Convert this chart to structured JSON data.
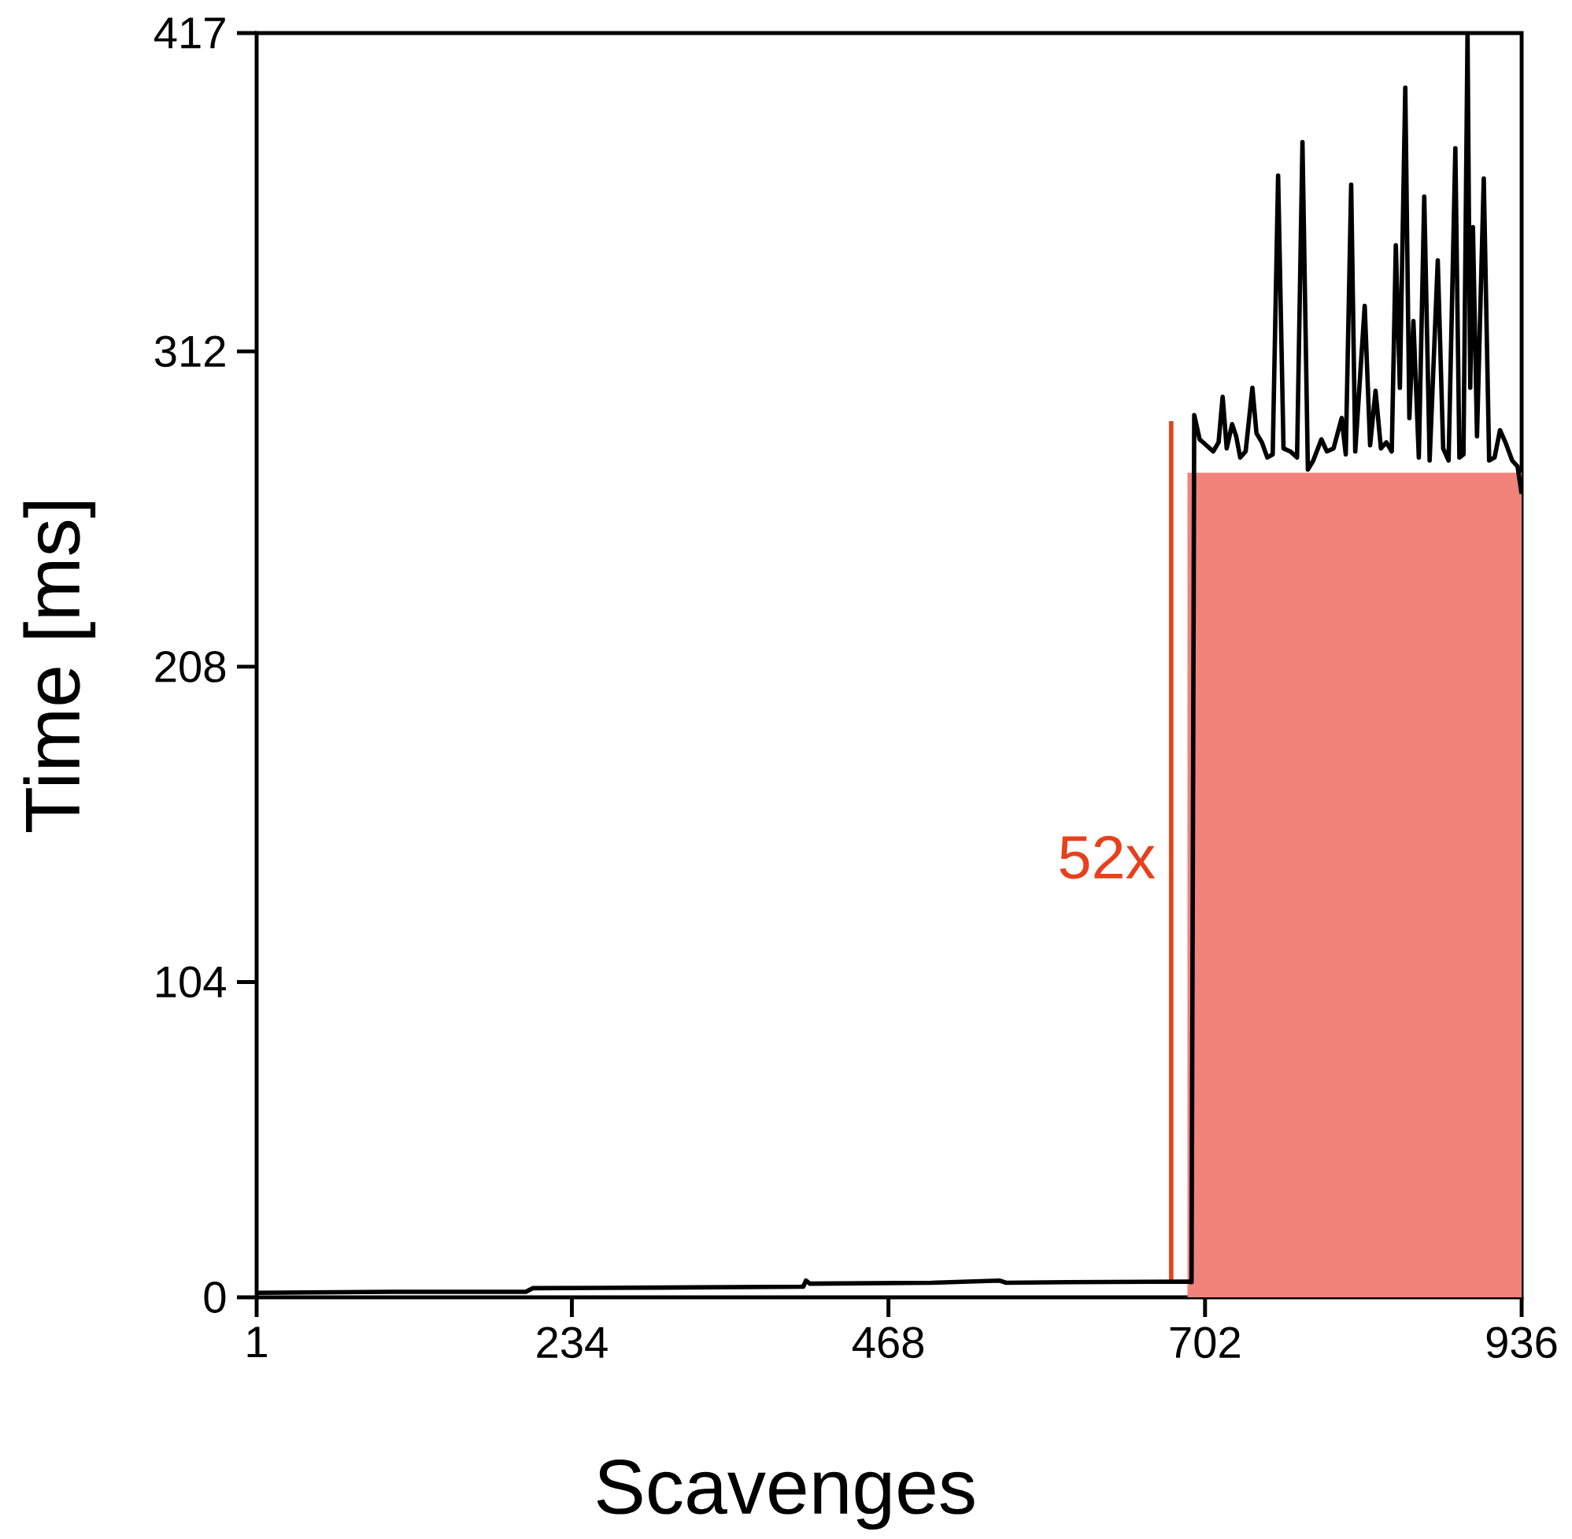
{
  "chart_data": {
    "type": "line",
    "xlabel": "Scavenges",
    "ylabel": "Time [ms]",
    "xlim": [
      1,
      936
    ],
    "ylim": [
      0,
      417
    ],
    "xticks": [
      1,
      234,
      468,
      702,
      936
    ],
    "yticks": [
      0,
      104,
      208,
      312,
      417
    ],
    "annotations": [
      "52x"
    ],
    "series": [
      {
        "type": "area",
        "color": "#f2837a",
        "x": [
          689,
          936
        ],
        "values": [
          272,
          272
        ]
      },
      {
        "type": "line",
        "color": "#e8401c",
        "x": [
          677,
          677
        ],
        "values": [
          5,
          289
        ]
      },
      {
        "color": "#000000",
        "x": [
          1,
          100,
          200,
          205,
          300,
          405,
          407,
          410,
          500,
          550,
          555,
          600,
          690,
          692,
          694,
          698,
          703,
          708,
          712,
          715,
          718,
          722,
          725,
          728,
          732,
          737,
          740,
          744,
          748,
          752,
          756,
          760,
          765,
          770,
          774,
          778,
          782,
          788,
          792,
          797,
          803,
          806,
          810,
          813,
          820,
          824,
          828,
          832,
          836,
          840,
          843,
          846,
          850,
          853,
          856,
          860,
          864,
          868,
          874,
          878,
          882,
          884,
          887,
          890,
          893,
          896,
          898,
          900,
          903,
          908,
          912,
          916,
          920,
          924,
          929,
          933,
          936
        ],
        "values": [
          1.5,
          1.8,
          1.8,
          3,
          3.2,
          3.5,
          5.5,
          4.5,
          4.8,
          5.5,
          4.8,
          5,
          5.2,
          5,
          291,
          283,
          281,
          279,
          282,
          297,
          280,
          288,
          284,
          277,
          279,
          300,
          285,
          282,
          277,
          278,
          370,
          280,
          279,
          277,
          381,
          273,
          276,
          283,
          279,
          280,
          290,
          278,
          367,
          279,
          327,
          281,
          299,
          280,
          282,
          279,
          347,
          300,
          399,
          290,
          322,
          277,
          363,
          276,
          342,
          280,
          276,
          317,
          379,
          277,
          278,
          417,
          300,
          353,
          284,
          369,
          276,
          277,
          286,
          282,
          276,
          274,
          265
        ]
      }
    ]
  }
}
